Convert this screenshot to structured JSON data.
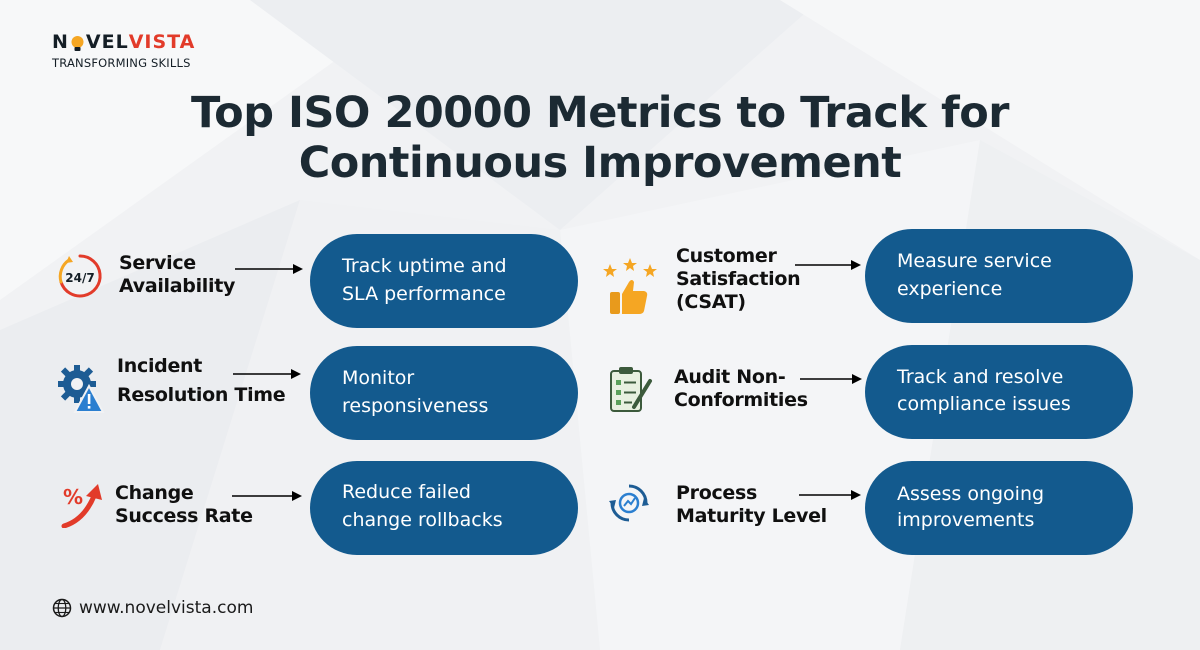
{
  "brand": {
    "logo_prefix": "N",
    "logo_mid": "VEL",
    "logo_suffix": "VISTA",
    "tagline": "TRANSFORMING SKILLS"
  },
  "title_lines": [
    "Top ISO 20000 Metrics to Track for",
    "Continuous Improvement"
  ],
  "metrics": [
    {
      "icon": "clock-24-7-icon",
      "icon_text": "24/7",
      "label_lines": [
        "Service",
        "Availability"
      ],
      "desc_lines": [
        "Track uptime and",
        "SLA performance"
      ]
    },
    {
      "icon": "thumbs-up-stars-icon",
      "label_lines": [
        "Customer",
        "Satisfaction",
        "(CSAT)"
      ],
      "desc_lines": [
        "Measure service",
        "experience"
      ]
    },
    {
      "icon": "gear-warning-icon",
      "label_lines": [
        "Incident",
        "Resolution Time"
      ],
      "desc_lines": [
        "Monitor",
        "responsiveness"
      ]
    },
    {
      "icon": "audit-checklist-icon",
      "label_lines": [
        "Audit Non-",
        "Conformities"
      ],
      "desc_lines": [
        "Track and resolve",
        "compliance issues"
      ]
    },
    {
      "icon": "percent-up-arrow-icon",
      "icon_text": "%",
      "label_lines": [
        "Change",
        "Success Rate"
      ],
      "desc_lines": [
        "Reduce failed",
        "change rollbacks"
      ]
    },
    {
      "icon": "process-cycle-icon",
      "label_lines": [
        "Process",
        "Maturity Level"
      ],
      "desc_lines": [
        "Assess ongoing",
        "improvements"
      ]
    }
  ],
  "footer": {
    "url": "www.novelvista.com",
    "icon": "globe-icon"
  },
  "colors": {
    "pill": "#135a8e",
    "accent_red": "#e23b2a",
    "accent_orange": "#f5a623",
    "title": "#1c2a33"
  }
}
